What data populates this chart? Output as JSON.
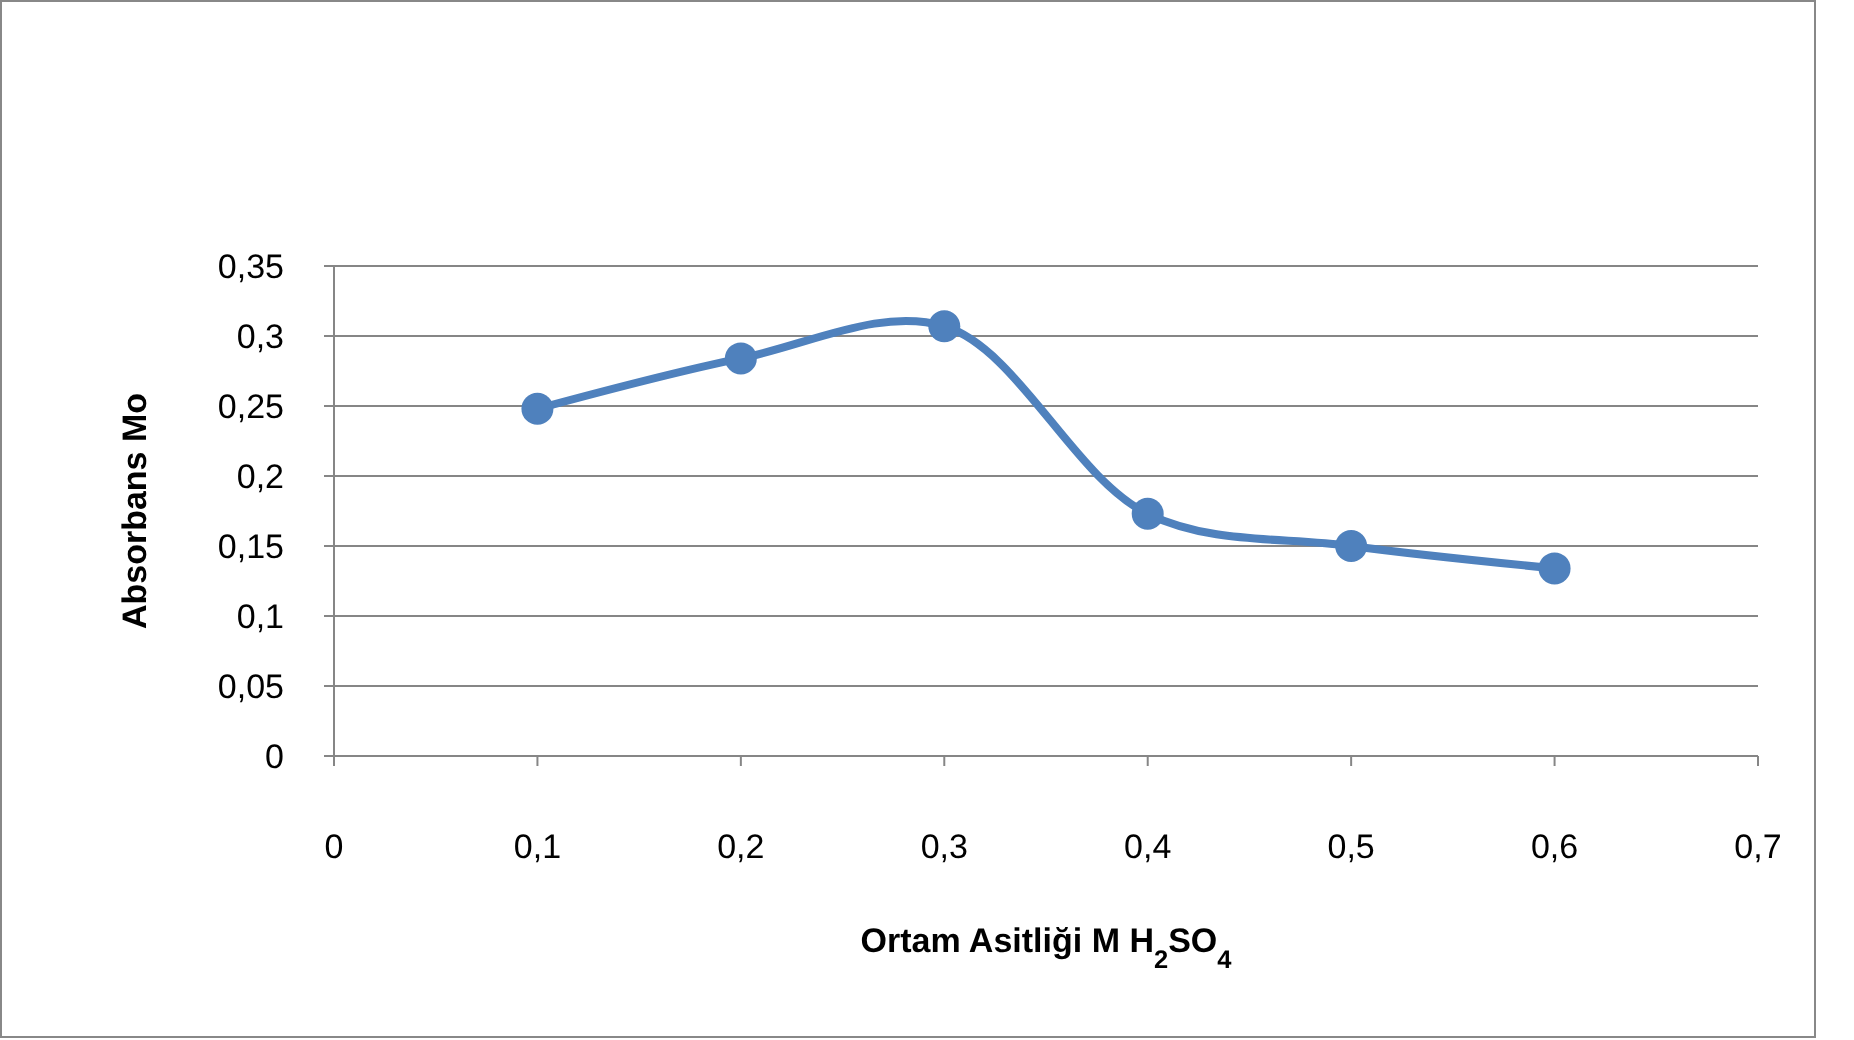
{
  "chart_data": {
    "type": "line",
    "xlabel": "Ortam Asitliği M H$_{2}$SO$_{4}$",
    "ylabel": "Absorbans Mo",
    "x": [
      0.1,
      0.2,
      0.3,
      0.4,
      0.5,
      0.6
    ],
    "series": [
      {
        "color": "#4f81bd",
        "values": [
          0.248,
          0.284,
          0.307,
          0.173,
          0.15,
          0.134
        ]
      }
    ],
    "xlim": [
      0,
      0.7
    ],
    "xticks": [
      {
        "value": 0,
        "label": "0"
      },
      {
        "value": 0.1,
        "label": "0,1"
      },
      {
        "value": 0.2,
        "label": "0,2"
      },
      {
        "value": 0.3,
        "label": "0,3"
      },
      {
        "value": 0.4,
        "label": "0,4"
      },
      {
        "value": 0.5,
        "label": "0,5"
      },
      {
        "value": 0.6,
        "label": "0,6"
      },
      {
        "value": 0.7,
        "label": "0,7"
      }
    ],
    "ylim": [
      0,
      0.35
    ],
    "yticks": [
      {
        "value": 0,
        "label": "0"
      },
      {
        "value": 0.05,
        "label": "0,05"
      },
      {
        "value": 0.1,
        "label": "0,1"
      },
      {
        "value": 0.15,
        "label": "0,15"
      },
      {
        "value": 0.2,
        "label": "0,2"
      },
      {
        "value": 0.25,
        "label": "0,25"
      },
      {
        "value": 0.3,
        "label": "0,3"
      },
      {
        "value": 0.35,
        "label": "0,35"
      }
    ],
    "grid": "y",
    "marker": "circle",
    "line_style": "solid"
  }
}
